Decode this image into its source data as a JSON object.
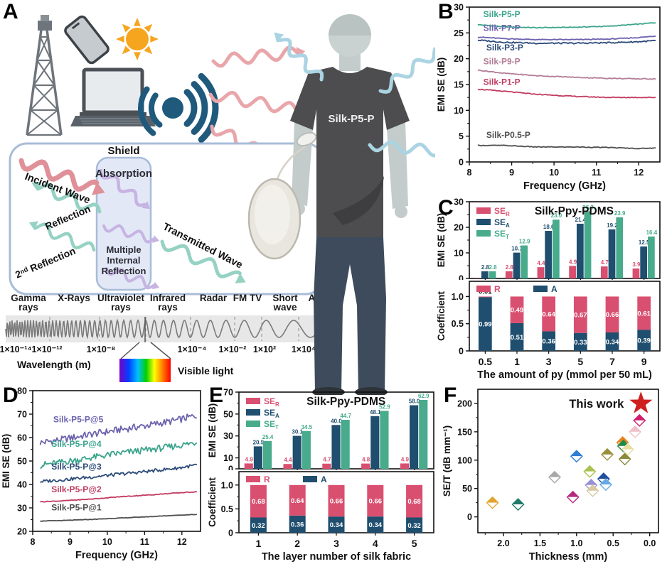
{
  "panels": {
    "A": {
      "label": "A",
      "icons": [
        "radio-tower-icon",
        "smartphone-icon",
        "sun-icon",
        "laptop-icon",
        "radio-signal-icon",
        "silk-cocoon",
        "person-figure"
      ],
      "person": {
        "shirt_label": "Silk-P5-P"
      },
      "shield": {
        "title": "Shield",
        "incident": "Incident Wave",
        "reflection": "Reflection",
        "second_reflection": "2ⁿᵈ Reflection",
        "absorption": "Absorption",
        "multiple_internal": "Multiple\nInternal\nReflection",
        "transmitted": "Transmitted Wave"
      },
      "spectrum": {
        "bands": [
          "Gamma\nrays",
          "X-Rays",
          "Ultraviolet\nrays",
          "Infrared\nrays",
          "Radar",
          "FM TV",
          "Short\nwave",
          "AM"
        ],
        "wavelengths": [
          "1×10⁻¹⁴",
          "1×10⁻¹²",
          "1×10⁻⁸",
          "1×10⁻⁴",
          "1×10⁻²",
          "1×10²",
          "1×10⁴"
        ],
        "xlabel": "Wavelength (m)",
        "visible_label": "Visible light"
      }
    },
    "B": {
      "label": "B"
    },
    "C": {
      "label": "C"
    },
    "D": {
      "label": "D"
    },
    "E": {
      "label": "E"
    },
    "F": {
      "label": "F"
    }
  },
  "colors": {
    "se_r": "#d94f70",
    "se_a": "#1f4e6f",
    "se_t": "#47ab8c",
    "star": "#cf2020",
    "pink_wave": "#e9a6aa",
    "blue_wave": "#abd4e3",
    "teal_wave": "#96d2c4",
    "purple_wave": "#c6b4e2"
  },
  "chart_data": [
    {
      "id": "B",
      "type": "line",
      "xlabel": "Frequency (GHz)",
      "ylabel": "EMI SE (dB)",
      "xlim": [
        8,
        12.5
      ],
      "ylim": [
        0,
        30
      ],
      "xticks": [
        8,
        9,
        10,
        11,
        12
      ],
      "xtick_labels": [
        "8",
        "9",
        "10",
        "11",
        "12"
      ],
      "yticks": [
        0,
        5,
        10,
        15,
        20,
        25,
        30
      ],
      "ytick_labels": [
        "0",
        "5",
        "10",
        "15",
        "20",
        "25",
        "30"
      ],
      "xminor": [
        8.5,
        9.5,
        10.5,
        11.5
      ],
      "yminor": [
        2.5,
        7.5,
        12.5,
        17.5,
        22.5,
        27.5
      ],
      "series": [
        {
          "name": "Silk-P5-P",
          "color": "#3aa48c",
          "noise": 0.08,
          "label_at": [
            8.33,
            28.1
          ],
          "points": [
            [
              8.2,
              26.6
            ],
            [
              8.8,
              26.2
            ],
            [
              9.6,
              26.0
            ],
            [
              10.5,
              26.1
            ],
            [
              11.3,
              26.3
            ],
            [
              12.0,
              26.7
            ],
            [
              12.4,
              27.0
            ]
          ]
        },
        {
          "name": "Silk-P7-P",
          "color": "#6c63ae",
          "noise": 0.08,
          "label_at": [
            8.33,
            25.4
          ],
          "points": [
            [
              8.2,
              24.2
            ],
            [
              8.8,
              23.9
            ],
            [
              9.6,
              23.7
            ],
            [
              10.5,
              23.7
            ],
            [
              11.3,
              23.8
            ],
            [
              12.0,
              24.1
            ],
            [
              12.4,
              24.4
            ]
          ]
        },
        {
          "name": "Silk-P3-P",
          "color": "#2b4a78",
          "noise": 0.13,
          "label_at": [
            8.4,
            21.6
          ],
          "points": [
            [
              8.2,
              23.6
            ],
            [
              8.8,
              23.2
            ],
            [
              9.6,
              23.0
            ],
            [
              10.5,
              23.0
            ],
            [
              11.3,
              23.1
            ],
            [
              12.0,
              23.3
            ],
            [
              12.4,
              23.5
            ]
          ]
        },
        {
          "name": "Silk-P9-P",
          "color": "#b37d96",
          "noise": 0.08,
          "label_at": [
            8.33,
            18.9
          ],
          "points": [
            [
              8.2,
              17.8
            ],
            [
              8.8,
              17.2
            ],
            [
              9.6,
              16.7
            ],
            [
              10.5,
              16.4
            ],
            [
              11.3,
              16.2
            ],
            [
              12.0,
              16.1
            ],
            [
              12.4,
              16.1
            ]
          ]
        },
        {
          "name": "Silk-P1-P",
          "color": "#c23b60",
          "noise": 0.08,
          "label_at": [
            8.33,
            14.9
          ],
          "points": [
            [
              8.2,
              14.1
            ],
            [
              8.8,
              13.7
            ],
            [
              9.6,
              13.1
            ],
            [
              10.5,
              12.7
            ],
            [
              11.3,
              12.5
            ],
            [
              12.0,
              12.5
            ],
            [
              12.4,
              12.5
            ]
          ]
        },
        {
          "name": "Silk-P0.5-P",
          "color": "#4e4e50",
          "noise": 0.07,
          "label_at": [
            8.4,
            4.7
          ],
          "points": [
            [
              8.2,
              3.2
            ],
            [
              8.8,
              3.2
            ],
            [
              9.6,
              2.9
            ],
            [
              10.5,
              2.9
            ],
            [
              11.3,
              2.8
            ],
            [
              12.0,
              2.6
            ],
            [
              12.4,
              2.7
            ]
          ]
        }
      ]
    },
    {
      "id": "C-top",
      "type": "bar",
      "title": "Silk-Ppy-PDMS",
      "ylabel": "EMI SE (dB)",
      "categories": [
        "0.5",
        "1",
        "3",
        "5",
        "7",
        "9"
      ],
      "ylim": [
        0,
        30
      ],
      "yticks": [
        0,
        10,
        20,
        30
      ],
      "ytick_labels": [
        "0",
        "10",
        "20",
        "30"
      ],
      "yminor": [
        5,
        15,
        25
      ],
      "legend": [
        {
          "base": "SE",
          "sub": "R",
          "color": "#d94f70"
        },
        {
          "base": "SE",
          "sub": "A",
          "color": "#1f4e6f"
        },
        {
          "base": "SE",
          "sub": "T",
          "color": "#47ab8c"
        }
      ],
      "series": [
        {
          "name": "SE_R",
          "color": "#d94f70",
          "values": [
            0.06,
            2.8,
            4.4,
            4.9,
            4.7,
            3.9
          ],
          "labels": [
            "",
            "2.8",
            "4.4",
            "4.9",
            "4.7",
            "3.9"
          ]
        },
        {
          "name": "SE_A",
          "color": "#1f4e6f",
          "values": [
            2.8,
            10.1,
            18.6,
            21.4,
            19.2,
            12.5
          ],
          "labels": [
            "2.8",
            "10.1",
            "18.6",
            "21.4",
            "19.2",
            "12.5"
          ]
        },
        {
          "name": "SE_T",
          "color": "#47ab8c",
          "values": [
            2.8,
            12.9,
            23.0,
            26.3,
            23.9,
            16.4
          ],
          "labels": [
            "2.8",
            "12.9",
            "23.0",
            "26.3",
            "23.9",
            "16.4"
          ]
        }
      ]
    },
    {
      "id": "C-bottom",
      "type": "stacked",
      "ylabel": "Coefficient",
      "xlabel": "The amount of py (mmol per 50 mL)",
      "categories": [
        "0.5",
        "1",
        "3",
        "5",
        "7",
        "9"
      ],
      "ylim": [
        0,
        1.28
      ],
      "yticks": [
        0,
        0.5,
        1.0
      ],
      "ytick_labels": [
        "0",
        "0.5",
        "1.0"
      ],
      "yminor": [
        0.25,
        0.75
      ],
      "legend": [
        {
          "base": "R",
          "sub": "",
          "color": "#d94f70"
        },
        {
          "base": "A",
          "sub": "",
          "color": "#1f4e6f"
        }
      ],
      "series": [
        {
          "name": "A",
          "color": "#1f4e6f",
          "values": [
            0.99,
            0.51,
            0.36,
            0.33,
            0.34,
            0.39
          ],
          "labels": [
            "0.99",
            "0.51",
            "0.36",
            "0.33",
            "0.34",
            "0.39"
          ]
        },
        {
          "name": "R",
          "color": "#d94f70",
          "values": [
            0.01,
            0.49,
            0.64,
            0.67,
            0.66,
            0.61
          ],
          "labels": [
            "0.01",
            "0.49",
            "0.64",
            "0.67",
            "0.66",
            "0.61"
          ]
        }
      ]
    },
    {
      "id": "D",
      "type": "line",
      "xlabel": "Frequency (GHz)",
      "ylabel": "EMI SE (dB)",
      "xlim": [
        8,
        12.5
      ],
      "ylim": [
        20,
        80
      ],
      "xticks": [
        8,
        9,
        10,
        11,
        12
      ],
      "xtick_labels": [
        "8",
        "9",
        "10",
        "11",
        "12"
      ],
      "yticks": [
        20,
        30,
        40,
        50,
        60,
        70,
        80
      ],
      "ytick_labels": [
        "20",
        "30",
        "40",
        "50",
        "60",
        "70",
        "80"
      ],
      "xminor": [
        8.5,
        9.5,
        10.5,
        11.5
      ],
      "yminor": [
        25,
        35,
        45,
        55,
        65,
        75
      ],
      "series": [
        {
          "name": "Silk-P5-P@5",
          "color": "#6c63ae",
          "noise": 1.5,
          "label_at": [
            8.55,
            66.5
          ],
          "points": [
            [
              8.2,
              57.8
            ],
            [
              8.8,
              59.2
            ],
            [
              9.6,
              61.5
            ],
            [
              10.4,
              63.5
            ],
            [
              11.2,
              65.5
            ],
            [
              11.9,
              67.5
            ],
            [
              12.4,
              69.5
            ]
          ]
        },
        {
          "name": "Silk-P5-P@4",
          "color": "#3aa48c",
          "noise": 1.4,
          "label_at": [
            8.5,
            56.0
          ],
          "points": [
            [
              8.2,
              48.2
            ],
            [
              8.8,
              49.5
            ],
            [
              9.6,
              51.5
            ],
            [
              10.4,
              53.5
            ],
            [
              11.2,
              55.0
            ],
            [
              11.9,
              56.5
            ],
            [
              12.4,
              58.0
            ]
          ]
        },
        {
          "name": "Silk-P5-P@3",
          "color": "#2b4a78",
          "noise": 0.7,
          "label_at": [
            8.5,
            46.3
          ],
          "points": [
            [
              8.2,
              41.2
            ],
            [
              8.8,
              42.0
            ],
            [
              9.6,
              43.2
            ],
            [
              10.4,
              44.5
            ],
            [
              11.2,
              45.8
            ],
            [
              11.9,
              47.0
            ],
            [
              12.4,
              48.3
            ]
          ]
        },
        {
          "name": "Silk-P5-P@2",
          "color": "#c23b60",
          "noise": 0.15,
          "label_at": [
            8.5,
            36.7
          ],
          "points": [
            [
              8.2,
              32.6
            ],
            [
              8.8,
              33.0
            ],
            [
              9.6,
              33.8
            ],
            [
              10.4,
              34.8
            ],
            [
              11.2,
              35.6
            ],
            [
              11.9,
              36.4
            ],
            [
              12.4,
              36.9
            ]
          ]
        },
        {
          "name": "Silk-P5-P@1",
          "color": "#4e4e50",
          "noise": 0.1,
          "label_at": [
            8.5,
            28.9
          ],
          "points": [
            [
              8.2,
              24.4
            ],
            [
              8.8,
              24.6
            ],
            [
              9.6,
              25.1
            ],
            [
              10.4,
              25.7
            ],
            [
              11.2,
              26.3
            ],
            [
              11.9,
              26.9
            ],
            [
              12.4,
              27.2
            ]
          ]
        }
      ]
    },
    {
      "id": "E-top",
      "type": "bar",
      "title": "Silk-Ppy-PDMS",
      "ylabel": "EMI SE (dB)",
      "categories": [
        "1",
        "2",
        "3",
        "4",
        "5"
      ],
      "ylim": [
        0,
        70
      ],
      "yticks": [
        0,
        10,
        30,
        50,
        70
      ],
      "ytick_labels": [
        "0",
        "10",
        "30",
        "50",
        "70"
      ],
      "yminor": [
        20,
        40,
        60
      ],
      "legend": [
        {
          "base": "SE",
          "sub": "R",
          "color": "#d94f70"
        },
        {
          "base": "SE",
          "sub": "A",
          "color": "#1f4e6f"
        },
        {
          "base": "SE",
          "sub": "T",
          "color": "#47ab8c"
        }
      ],
      "series": [
        {
          "name": "SE_R",
          "color": "#d94f70",
          "values": [
            4.9,
            4.4,
            4.7,
            4.8,
            4.9
          ],
          "labels": [
            "4.9",
            "4.4",
            "4.7",
            "4.8",
            "4.9"
          ]
        },
        {
          "name": "SE_A",
          "color": "#1f4e6f",
          "values": [
            20.5,
            30.1,
            40.0,
            48.1,
            58.0
          ],
          "labels": [
            "20.5",
            "30.1",
            "40.0",
            "48.1",
            "58.0"
          ]
        },
        {
          "name": "SE_T",
          "color": "#47ab8c",
          "values": [
            25.4,
            34.5,
            44.7,
            52.9,
            62.9
          ],
          "labels": [
            "25.4",
            "34.5",
            "44.7",
            "52.9",
            "62.9"
          ]
        }
      ]
    },
    {
      "id": "E-bottom",
      "type": "stacked",
      "ylabel": "Coefficient",
      "xlabel": "The layer number of silk fabric",
      "categories": [
        "1",
        "2",
        "3",
        "4",
        "5"
      ],
      "ylim": [
        0,
        1.28
      ],
      "yticks": [
        0,
        0.5,
        1.0
      ],
      "ytick_labels": [
        "0",
        "0.5",
        "1.0"
      ],
      "yminor": [
        0.25,
        0.75
      ],
      "legend": [
        {
          "base": "R",
          "sub": "",
          "color": "#d94f70"
        },
        {
          "base": "A",
          "sub": "",
          "color": "#1f4e6f"
        }
      ],
      "series": [
        {
          "name": "A",
          "color": "#1f4e6f",
          "values": [
            0.32,
            0.36,
            0.34,
            0.34,
            0.32
          ],
          "labels": [
            "0.32",
            "0.36",
            "0.34",
            "0.34",
            "0.32"
          ]
        },
        {
          "name": "R",
          "color": "#d94f70",
          "values": [
            0.68,
            0.64,
            0.66,
            0.66,
            0.68
          ],
          "labels": [
            "0.68",
            "0.64",
            "0.66",
            "0.66",
            "0.68"
          ]
        }
      ]
    },
    {
      "id": "F",
      "type": "scatter",
      "xlabel": "Thickness (mm)",
      "ylabel": "SE/T (dB mm⁻¹)",
      "xlim": [
        2.35,
        -0.12
      ],
      "ylim": [
        -28,
        225
      ],
      "xticks": [
        2.0,
        1.5,
        1.0,
        0.5,
        0.0
      ],
      "xtick_labels": [
        "2.0",
        "1.5",
        "1.0",
        "0.5",
        "0.0"
      ],
      "yticks": [
        0,
        50,
        100,
        150,
        200
      ],
      "ytick_labels": [
        "0",
        "50",
        "100",
        "150",
        "200"
      ],
      "xminor": [
        2.25,
        1.75,
        1.25,
        0.75,
        0.25
      ],
      "yminor": [
        25,
        75,
        125,
        175
      ],
      "points": [
        {
          "x": 2.15,
          "y": 25,
          "color": "#e2a42c"
        },
        {
          "x": 1.8,
          "y": 22,
          "color": "#1f7a68"
        },
        {
          "x": 1.3,
          "y": 70,
          "color": "#a8a8a8"
        },
        {
          "x": 1.05,
          "y": 35,
          "color": "#b52a80"
        },
        {
          "x": 1.0,
          "y": 107,
          "color": "#2e7fd2"
        },
        {
          "x": 0.82,
          "y": 80,
          "color": "#a9c34f"
        },
        {
          "x": 0.8,
          "y": 56,
          "color": "#9a90d4"
        },
        {
          "x": 0.78,
          "y": 46,
          "color": "#d9c9a2"
        },
        {
          "x": 0.63,
          "y": 67,
          "color": "#1f4ea0"
        },
        {
          "x": 0.6,
          "y": 57,
          "color": "#66aae6"
        },
        {
          "x": 0.58,
          "y": 110,
          "color": "#9a8f3a"
        },
        {
          "x": 0.37,
          "y": 131,
          "color": "#e8821e"
        },
        {
          "x": 0.36,
          "y": 125,
          "color": "#1e8a4a"
        },
        {
          "x": 0.34,
          "y": 102,
          "color": "#8a8a3c"
        },
        {
          "x": 0.3,
          "y": 119,
          "color": "#e9dda2"
        },
        {
          "x": 0.2,
          "y": 150,
          "color": "#eec1cc"
        },
        {
          "x": 0.14,
          "y": 170,
          "color": "#d01e6e"
        }
      ],
      "annotation": {
        "text": "This work",
        "star": {
          "x": 0.12,
          "y": 200,
          "color": "#cf2020"
        }
      }
    }
  ]
}
